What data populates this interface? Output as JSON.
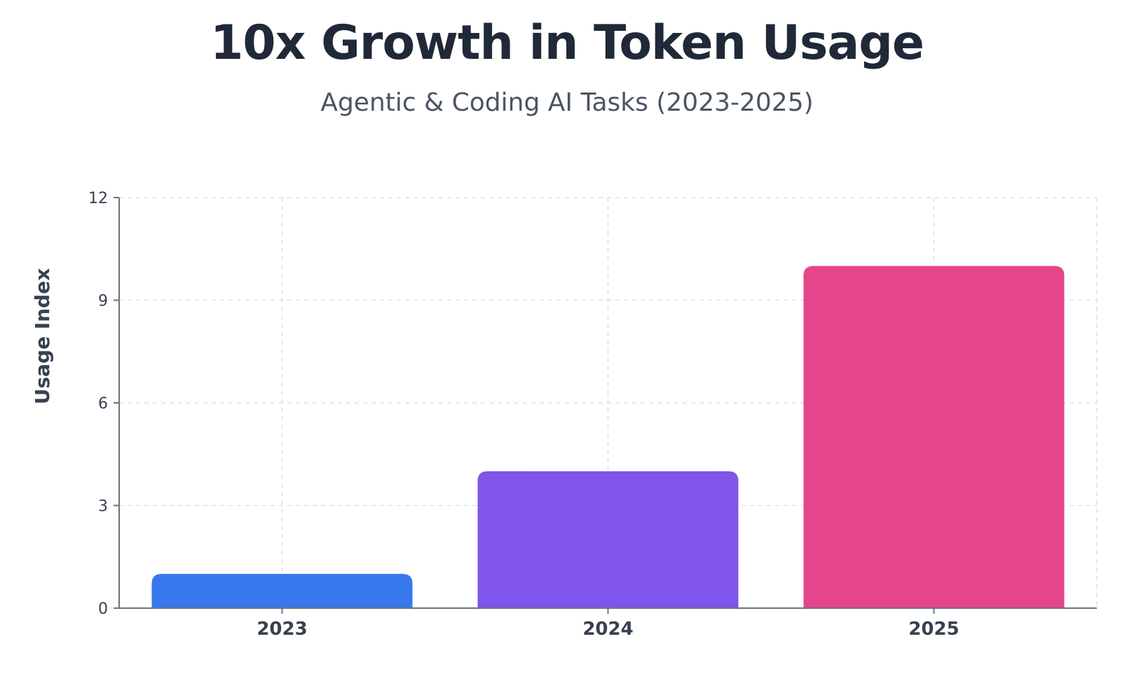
{
  "chart_data": {
    "type": "bar",
    "title": "10x Growth in Token Usage",
    "subtitle": "Agentic & Coding AI Tasks (2023-2025)",
    "xlabel": "",
    "ylabel": "Usage Index",
    "categories": [
      "2023",
      "2024",
      "2025"
    ],
    "values": [
      1,
      4,
      10
    ],
    "bar_colors": [
      "#3778ee",
      "#7f55ec",
      "#e5458a"
    ],
    "ylim": [
      0,
      12
    ],
    "yticks": [
      0,
      3,
      6,
      9,
      12
    ],
    "grid": true,
    "legend": "none"
  }
}
